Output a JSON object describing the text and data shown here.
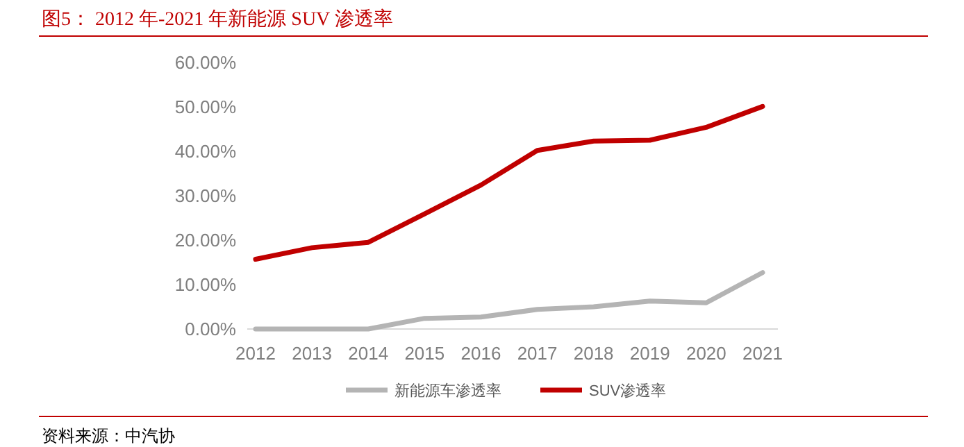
{
  "chart_data": {
    "type": "line",
    "title": "图5：  2012 年-2021 年新能源 SUV 渗透率",
    "categories": [
      "2012",
      "2013",
      "2014",
      "2015",
      "2016",
      "2017",
      "2018",
      "2019",
      "2020",
      "2021"
    ],
    "series": [
      {
        "name": "新能源车渗透率",
        "color": "#b4b4b4",
        "values": [
          0,
          0,
          0,
          2.4,
          2.7,
          4.4,
          5.0,
          6.3,
          5.9,
          12.7
        ]
      },
      {
        "name": "SUV渗透率",
        "color": "#c00000",
        "values": [
          15.7,
          18.3,
          19.5,
          25.9,
          32.4,
          40.2,
          42.3,
          42.5,
          45.4,
          50.1
        ]
      }
    ],
    "ylim": [
      0,
      60
    ],
    "yticks": [
      {
        "value": 0,
        "label": "0.00%"
      },
      {
        "value": 10,
        "label": "10.00%"
      },
      {
        "value": 20,
        "label": "20.00%"
      },
      {
        "value": 30,
        "label": "30.00%"
      },
      {
        "value": 40,
        "label": "40.00%"
      },
      {
        "value": 50,
        "label": "50.00%"
      },
      {
        "value": 60,
        "label": "60.00%"
      }
    ],
    "grid": false,
    "legend": "bottom",
    "marker": "none",
    "line_style": "solid",
    "annotations": [
      "资料来源：中汽协"
    ]
  }
}
